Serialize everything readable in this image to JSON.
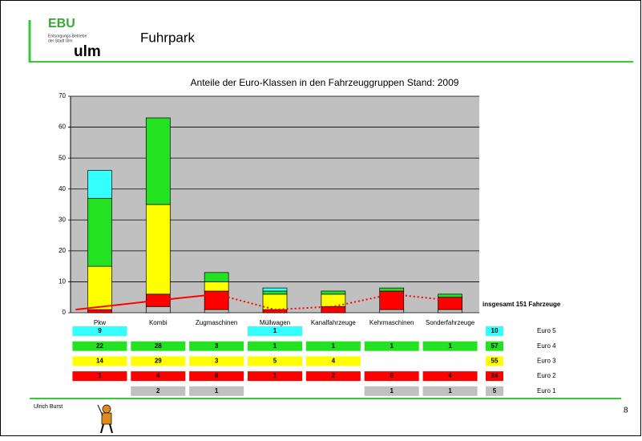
{
  "header": {
    "logo_top": "EBU",
    "logo_sub1": "Entsorgungs-Betriebe",
    "logo_sub2": "der Stadt Ulm",
    "logo_bottom": "ulm",
    "title": "Fuhrpark"
  },
  "chart_data": {
    "type": "stacked-bar",
    "title": "Anteile der Euro-Klassen in den Fahrzeuggruppen Stand: 2009",
    "categories": [
      "Pkw",
      "Kombi",
      "Zugmaschinen",
      "Müllwagen",
      "Kanalfahrzeuge",
      "Kehrmaschinen",
      "Sonderfahrzeuge"
    ],
    "series": [
      {
        "name": "Euro 5",
        "color": "#33ffff",
        "values": [
          9,
          null,
          null,
          1,
          null,
          null,
          null
        ],
        "total": 10
      },
      {
        "name": "Euro 4",
        "color": "#22e222",
        "values": [
          22,
          28,
          3,
          1,
          1,
          1,
          1
        ],
        "total": 57
      },
      {
        "name": "Euro 3",
        "color": "#ffff00",
        "values": [
          14,
          29,
          3,
          5,
          4,
          null,
          null
        ],
        "total": 55
      },
      {
        "name": "Euro 2",
        "color": "#ff0000",
        "values": [
          1,
          4,
          6,
          1,
          2,
          6,
          4
        ],
        "total": 24
      },
      {
        "name": "Euro 1",
        "color": "#c0c0c0",
        "values": [
          null,
          2,
          1,
          null,
          null,
          1,
          1
        ],
        "total": 5
      }
    ],
    "ylim": [
      0,
      70
    ],
    "yticks": [
      0,
      10,
      20,
      30,
      40,
      50,
      60,
      70
    ],
    "grid": true,
    "trend_series": 3,
    "total_label": "insgesamt  151 Fahrzeuge"
  },
  "footer": {
    "author": "Ulrich Burst",
    "page": "8"
  }
}
